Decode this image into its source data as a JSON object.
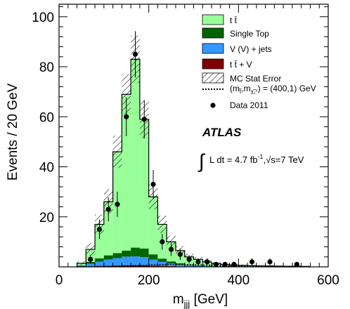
{
  "chart_data": {
    "type": "histogram",
    "xlabel": "m_jjj [GeV]",
    "ylabel": "Events / 20 GeV",
    "xlim": [
      0,
      600
    ],
    "ylim": [
      0,
      105
    ],
    "x_ticks": [
      "0",
      "200",
      "400",
      "600"
    ],
    "y_ticks": [
      "20",
      "40",
      "60",
      "80",
      "100"
    ],
    "bin_width": 20,
    "bin_starts": [
      40,
      60,
      80,
      100,
      120,
      140,
      160,
      180,
      200,
      220,
      240,
      260,
      280,
      300,
      320,
      340,
      360,
      380,
      400,
      420,
      440,
      460,
      480,
      500,
      520,
      540
    ],
    "stack": {
      "ttbarV": [
        0.1,
        0.2,
        0.3,
        0.4,
        0.5,
        0.6,
        0.6,
        0.6,
        0.5,
        0.4,
        0.3,
        0.2,
        0.1,
        0.1,
        0.1,
        0.05,
        0.05,
        0.05,
        0.05,
        0.05,
        0.05,
        0.05,
        0.05,
        0.05,
        0.05,
        0.05
      ],
      "wzjets": [
        0.3,
        1.0,
        1.8,
        2.5,
        3.0,
        3.5,
        3.6,
        3.3,
        2.4,
        1.6,
        1.1,
        0.7,
        0.4,
        0.3,
        0.2,
        0.15,
        0.1,
        0.1,
        0.1,
        0.05,
        0.05,
        0.05,
        0.05,
        0.05,
        0.05,
        0.05
      ],
      "singletop": [
        0.2,
        0.8,
        1.3,
        1.7,
        2.0,
        2.4,
        3.5,
        3.4,
        2.1,
        1.3,
        0.8,
        0.5,
        0.3,
        0.2,
        0.15,
        0.1,
        0.1,
        0.05,
        0.05,
        0.05,
        0.05,
        0.05,
        0.05,
        0.05,
        0.05,
        0.05
      ],
      "ttbar": [
        0.8,
        5.0,
        13.6,
        21.4,
        40.5,
        62.5,
        75.3,
        51.7,
        23.0,
        13.7,
        7.8,
        5.1,
        3.2,
        2.4,
        1.5,
        1.1,
        0.75,
        0.5,
        0.4,
        0.35,
        0.25,
        0.2,
        0.15,
        0.1,
        0.1,
        0.05
      ]
    },
    "total": [
      1.4,
      7.0,
      17.0,
      26.0,
      46.0,
      69.0,
      83.0,
      59.0,
      28.0,
      17.0,
      10.0,
      6.5,
      4.0,
      3.0,
      1.95,
      1.4,
      1.0,
      0.7,
      0.6,
      0.5,
      0.4,
      0.35,
      0.3,
      0.25,
      0.25,
      0.2
    ],
    "mc_stat_error": [
      0.8,
      2.5,
      4.0,
      5.0,
      6.5,
      8.0,
      9.5,
      7.5,
      5.0,
      3.5,
      2.5,
      1.8,
      1.3,
      1.0,
      0.8,
      0.6,
      0.5,
      0.4,
      0.35,
      0.3,
      0.3,
      0.25,
      0.25,
      0.2,
      0.2,
      0.2
    ],
    "signal_400_1": [
      0.05,
      0.1,
      0.15,
      0.2,
      0.3,
      0.4,
      0.5,
      0.6,
      0.8,
      0.9,
      1.0,
      1.0,
      0.9,
      0.8,
      0.7,
      0.6,
      0.4,
      0.3,
      0.2,
      0.15,
      0.1,
      0.1,
      0.05,
      0.05,
      0.05,
      0.05
    ],
    "data": {
      "x": [
        70,
        90,
        110,
        130,
        150,
        170,
        190,
        210,
        230,
        250,
        270,
        290,
        310,
        330,
        350,
        370,
        390,
        430,
        470,
        530
      ],
      "y": [
        3,
        15,
        23,
        25,
        60,
        85,
        59,
        33,
        10,
        7,
        5,
        3,
        2,
        2,
        1,
        1,
        1,
        2,
        2,
        1
      ]
    },
    "legend": {
      "ttbar": "t t̄",
      "singletop": "Single Top",
      "wzjets": "V (V) + jets",
      "ttbarV": "t t̄ + V",
      "mcstat": "MC Stat Error",
      "signal_prefix": "(m",
      "signal_sub1": "t̃",
      "signal_mid": ",m",
      "signal_sub2": "χ̃₁⁰",
      "signal_suffix": ") = (400,1) GeV",
      "data": "Data 2011"
    },
    "legend_position": "top-right",
    "atlas_label": "ATLAS",
    "lumi_integral": "∫",
    "lumi_text_a": "L dt = 4.7 fb",
    "lumi_exp": "-1",
    "lumi_text_b": ",√s=7 TeV",
    "colors": {
      "ttbar": "#99ff99",
      "singletop": "#006400",
      "wzjets": "#3399ff",
      "ttbarV": "#800000",
      "data": "#000000"
    }
  }
}
